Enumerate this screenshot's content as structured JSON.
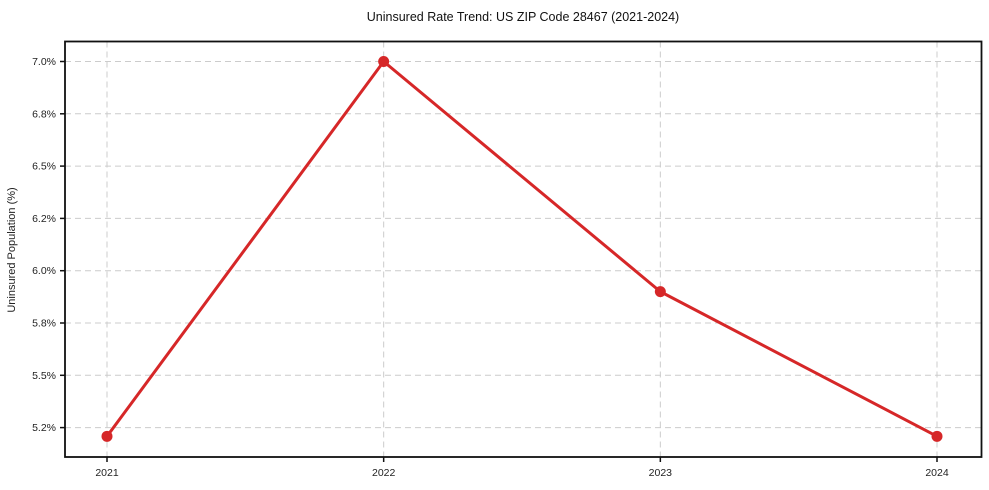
{
  "chart_data": {
    "type": "line",
    "title": "Uninsured Rate Trend: US ZIP Code 28467 (2021-2024)",
    "xlabel": "",
    "ylabel": "Uninsured Population (%)",
    "x_tick_labels": [
      "2021",
      "2022",
      "2023",
      "2024"
    ],
    "y_tick_labels": [
      "7.0%",
      "6.8%",
      "6.5%",
      "6.2%",
      "6.0%",
      "5.8%",
      "5.5%",
      "5.2%"
    ],
    "y_tick_values": [
      7.0,
      6.8,
      6.5,
      6.2,
      6.0,
      5.8,
      5.5,
      5.2
    ],
    "series": [
      {
        "name": "Uninsured Rate",
        "x": [
          2021,
          2022,
          2023,
          2024
        ],
        "values": [
          5.15,
          7.0,
          5.92,
          5.15
        ]
      }
    ],
    "legend": "none",
    "grid": "dashed",
    "line_color": "#d62728",
    "marker_color": "#d62728",
    "grid_color": "#cccccc",
    "spine_color": "#111111"
  }
}
